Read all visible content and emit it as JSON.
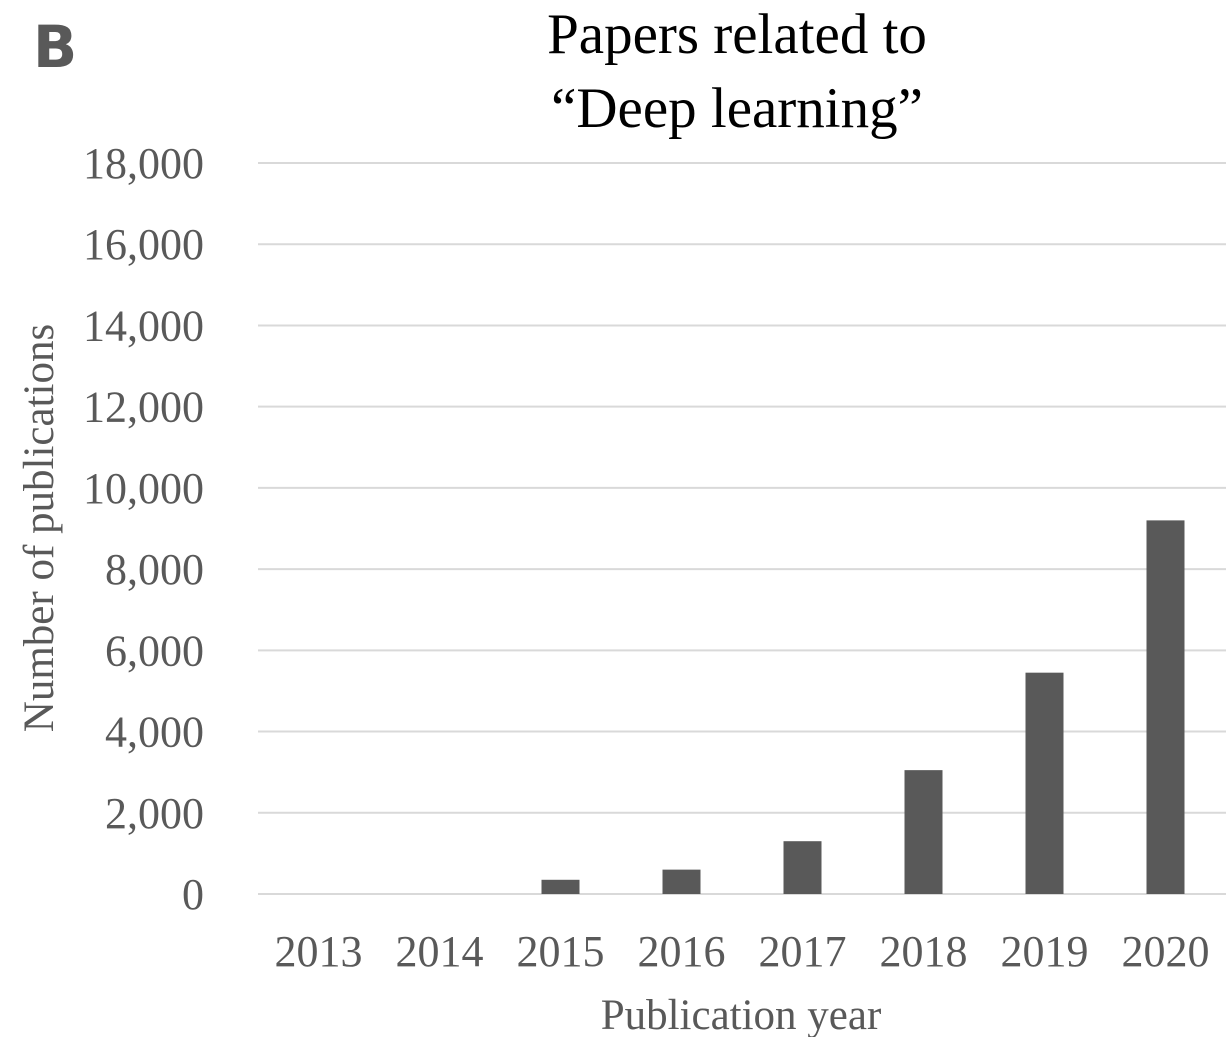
{
  "panel_label": "B",
  "chart_data": {
    "type": "bar",
    "title_lines": [
      "Papers related to",
      "“Deep learning”"
    ],
    "xlabel": "Publication year",
    "ylabel": "Number of publications",
    "categories": [
      "2013",
      "2014",
      "2015",
      "2016",
      "2017",
      "2018",
      "2019",
      "2020"
    ],
    "values": [
      0,
      0,
      350,
      600,
      1300,
      3050,
      5450,
      9200
    ],
    "ylim": [
      0,
      18000
    ],
    "yticks": [
      0,
      2000,
      4000,
      6000,
      8000,
      10000,
      12000,
      14000,
      16000,
      18000
    ],
    "ytick_labels": [
      "0",
      "2,000",
      "4,000",
      "6,000",
      "8,000",
      "10,000",
      "12,000",
      "14,000",
      "16,000",
      "18,000"
    ],
    "grid": true,
    "bar_color": "#595959",
    "grid_color": "#d9d9d9",
    "text_color": "#595959"
  }
}
